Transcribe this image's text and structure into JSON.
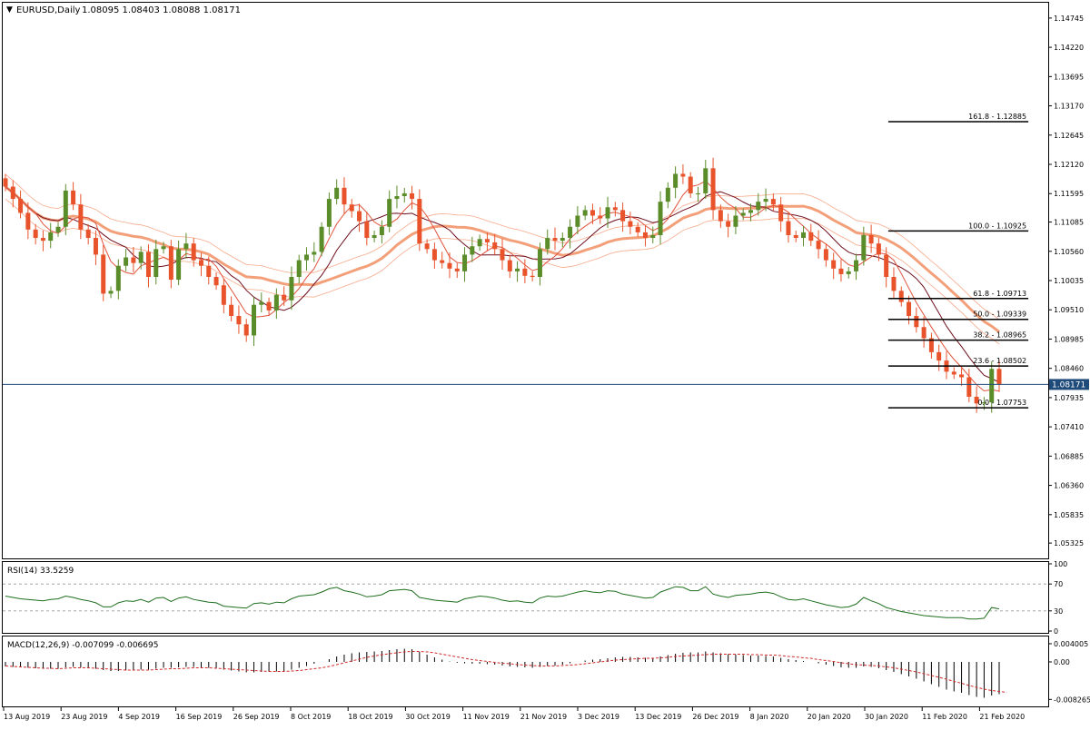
{
  "header": {
    "title": "EURUSD,Daily",
    "ohlc": "1.08095 1.08403 1.08088 1.08171"
  },
  "colors": {
    "bull": "#5b8c2a",
    "bear": "#e8532b",
    "ema_slow": "#f3a07a",
    "sma_dark": "#6e0f1e",
    "sma_red": "#e0533c",
    "band": "#f7a98a",
    "rsi": "#1e6e1e",
    "macd_hist": "#000000",
    "macd_signal": "#d12a2a",
    "fib": "#000000",
    "current_line": "#1f4b7a",
    "current_label_bg": "#1f4b7a"
  },
  "chart_data": [
    {
      "type": "candlestick",
      "title": "EURUSD,Daily",
      "ylim": [
        1.0505,
        1.1502
      ],
      "y_ticks": [
        "1.14745",
        "1.14220",
        "1.13695",
        "1.13170",
        "1.12645",
        "1.12120",
        "1.11595",
        "1.11085",
        "1.10560",
        "1.10035",
        "1.09510",
        "1.08985",
        "1.08460",
        "1.07935",
        "1.07410",
        "1.06885",
        "1.06360",
        "1.05835",
        "1.05325"
      ],
      "x_ticks": [
        "13 Aug 2019",
        "23 Aug 2019",
        "4 Sep 2019",
        "16 Sep 2019",
        "26 Sep 2019",
        "8 Oct 2019",
        "18 Oct 2019",
        "30 Oct 2019",
        "11 Nov 2019",
        "21 Nov 2019",
        "3 Dec 2019",
        "13 Dec 2019",
        "26 Dec 2019",
        "8 Jan 2020",
        "20 Jan 2020",
        "30 Jan 2020",
        "11 Feb 2020",
        "21 Feb 2020"
      ],
      "current_price": "1.08171",
      "closes": [
        1.1172,
        1.115,
        1.1125,
        1.1095,
        1.108,
        1.1075,
        1.109,
        1.11,
        1.1165,
        1.114,
        1.1095,
        1.108,
        1.105,
        1.098,
        1.0985,
        1.103,
        1.1045,
        1.1035,
        1.1055,
        1.101,
        1.106,
        1.1065,
        1.1005,
        1.106,
        1.107,
        1.104,
        1.103,
        1.101,
        1.0995,
        1.096,
        1.094,
        1.0925,
        1.0905,
        1.096,
        1.0965,
        1.095,
        1.0978,
        1.0968,
        1.101,
        1.104,
        1.105,
        1.1055,
        1.11,
        1.115,
        1.117,
        1.114,
        1.1128,
        1.111,
        1.108,
        1.1085,
        1.11,
        1.115,
        1.1155,
        1.116,
        1.115,
        1.107,
        1.106,
        1.104,
        1.1035,
        1.1025,
        1.102,
        1.105,
        1.1065,
        1.1078,
        1.1072,
        1.106,
        1.104,
        1.102,
        1.1025,
        1.1012,
        1.101,
        1.106,
        1.108,
        1.1075,
        1.108,
        1.11,
        1.112,
        1.113,
        1.112,
        1.1115,
        1.1135,
        1.113,
        1.111,
        1.11,
        1.109,
        1.108,
        1.1085,
        1.1145,
        1.117,
        1.1195,
        1.119,
        1.116,
        1.116,
        1.1205,
        1.113,
        1.111,
        1.11,
        1.112,
        1.1125,
        1.113,
        1.1145,
        1.115,
        1.114,
        1.111,
        1.1085,
        1.108,
        1.109,
        1.1075,
        1.106,
        1.104,
        1.1025,
        1.1015,
        1.102,
        1.104,
        1.1085,
        1.107,
        1.105,
        1.101,
        1.0985,
        1.0965,
        1.094,
        1.092,
        1.09,
        1.0875,
        1.086,
        1.084,
        1.0835,
        1.083,
        1.0795,
        1.0783,
        1.0785,
        1.0845,
        1.0817
      ]
    },
    {
      "type": "line",
      "title": "RSI(14) 33.5259",
      "ylim": [
        0,
        100
      ],
      "y_ticks": [
        "100",
        "70",
        "30",
        "0"
      ],
      "levels": [
        70,
        30
      ],
      "values": [
        52,
        50,
        48,
        47,
        46,
        45,
        47,
        48,
        52,
        50,
        47,
        45,
        42,
        36,
        36,
        42,
        45,
        44,
        47,
        43,
        49,
        50,
        44,
        49,
        51,
        47,
        45,
        43,
        42,
        37,
        36,
        35,
        34,
        41,
        42,
        40,
        43,
        42,
        48,
        52,
        53,
        54,
        58,
        63,
        65,
        60,
        58,
        55,
        51,
        52,
        54,
        60,
        61,
        62,
        60,
        50,
        48,
        46,
        45,
        44,
        43,
        48,
        50,
        52,
        51,
        49,
        46,
        44,
        45,
        43,
        42,
        49,
        52,
        51,
        52,
        55,
        58,
        60,
        58,
        57,
        60,
        59,
        55,
        53,
        51,
        49,
        50,
        58,
        62,
        66,
        65,
        60,
        60,
        66,
        55,
        52,
        50,
        53,
        54,
        55,
        57,
        58,
        56,
        51,
        47,
        46,
        48,
        45,
        42,
        39,
        37,
        35,
        36,
        40,
        50,
        45,
        41,
        35,
        32,
        29,
        27,
        25,
        23,
        22,
        21,
        20,
        20,
        20,
        18,
        18,
        19,
        35,
        33
      ]
    },
    {
      "type": "bar",
      "title": "MACD(12,26,9) -0.007099 -0.006695",
      "ylim": [
        -0.0094,
        0.0052
      ],
      "y_ticks": [
        "0.004005",
        "0.00",
        "-0.008265"
      ],
      "histogram": [
        -0.001,
        -0.0011,
        -0.0012,
        -0.0013,
        -0.0014,
        -0.0015,
        -0.0015,
        -0.0015,
        -0.0012,
        -0.0011,
        -0.0012,
        -0.0013,
        -0.0015,
        -0.0018,
        -0.002,
        -0.002,
        -0.0019,
        -0.0018,
        -0.0017,
        -0.0017,
        -0.0015,
        -0.0013,
        -0.0013,
        -0.0012,
        -0.0011,
        -0.0011,
        -0.0012,
        -0.0013,
        -0.0015,
        -0.0017,
        -0.0019,
        -0.0021,
        -0.0023,
        -0.0023,
        -0.0022,
        -0.0022,
        -0.0021,
        -0.002,
        -0.0017,
        -0.0013,
        -0.0009,
        -0.0004,
        0.0,
        0.0006,
        0.0012,
        0.0016,
        0.0019,
        0.0021,
        0.0022,
        0.0023,
        0.0024,
        0.0026,
        0.0028,
        0.0029,
        0.0028,
        0.0022,
        0.0016,
        0.001,
        0.0005,
        0.0001,
        -0.0002,
        -0.0003,
        -0.0004,
        -0.0004,
        -0.0005,
        -0.0006,
        -0.0008,
        -0.001,
        -0.0011,
        -0.0012,
        -0.0013,
        -0.0011,
        -0.0009,
        -0.0008,
        -0.0006,
        -0.0003,
        0.0,
        0.0003,
        0.0005,
        0.0006,
        0.0008,
        0.001,
        0.0011,
        0.0011,
        0.001,
        0.0009,
        0.0009,
        0.0012,
        0.0015,
        0.0018,
        0.002,
        0.0021,
        0.0021,
        0.0023,
        0.0021,
        0.0019,
        0.0017,
        0.0016,
        0.0015,
        0.0014,
        0.0014,
        0.0013,
        0.0012,
        0.0009,
        0.0006,
        0.0004,
        0.0002,
        0.0,
        -0.0003,
        -0.0006,
        -0.0009,
        -0.0012,
        -0.0013,
        -0.0013,
        -0.001,
        -0.0011,
        -0.0014,
        -0.0018,
        -0.0022,
        -0.0027,
        -0.0032,
        -0.0037,
        -0.0043,
        -0.0049,
        -0.0055,
        -0.0061,
        -0.0065,
        -0.0068,
        -0.0073,
        -0.0077,
        -0.0079,
        -0.0074,
        -0.0071
      ],
      "signal": [
        -0.0009,
        -0.001,
        -0.0011,
        -0.0012,
        -0.0013,
        -0.0014,
        -0.0014,
        -0.0015,
        -0.0014,
        -0.0013,
        -0.0013,
        -0.0013,
        -0.0014,
        -0.0015,
        -0.0016,
        -0.0017,
        -0.0018,
        -0.0018,
        -0.0018,
        -0.0018,
        -0.0017,
        -0.0016,
        -0.0015,
        -0.0015,
        -0.0014,
        -0.0013,
        -0.0013,
        -0.0013,
        -0.0014,
        -0.0015,
        -0.0016,
        -0.0017,
        -0.0018,
        -0.0019,
        -0.002,
        -0.0021,
        -0.0021,
        -0.0021,
        -0.002,
        -0.0019,
        -0.0017,
        -0.0015,
        -0.0013,
        -0.001,
        -0.0006,
        -0.0002,
        0.0002,
        0.0006,
        0.001,
        0.0013,
        0.0016,
        0.0018,
        0.002,
        0.0022,
        0.0023,
        0.0023,
        0.0022,
        0.002,
        0.0017,
        0.0014,
        0.0011,
        0.0008,
        0.0005,
        0.0003,
        0.0001,
        -0.0001,
        -0.0003,
        -0.0004,
        -0.0006,
        -0.0007,
        -0.0008,
        -0.0009,
        -0.0009,
        -0.0009,
        -0.0008,
        -0.0007,
        -0.0006,
        -0.0004,
        -0.0002,
        0.0,
        0.0002,
        0.0004,
        0.0005,
        0.0006,
        0.0007,
        0.0008,
        0.0008,
        0.0009,
        0.001,
        0.0012,
        0.0013,
        0.0014,
        0.0015,
        0.0016,
        0.0017,
        0.0017,
        0.0017,
        0.0017,
        0.0017,
        0.0016,
        0.0016,
        0.0015,
        0.0015,
        0.0014,
        0.0012,
        0.0011,
        0.0009,
        0.0008,
        0.0005,
        0.0003,
        0.0001,
        -0.0002,
        -0.0004,
        -0.0006,
        -0.0007,
        -0.0008,
        -0.0009,
        -0.0011,
        -0.0013,
        -0.0016,
        -0.0019,
        -0.0022,
        -0.0026,
        -0.003,
        -0.0034,
        -0.0038,
        -0.0043,
        -0.0047,
        -0.0052,
        -0.0056,
        -0.006,
        -0.0063,
        -0.0065,
        -0.0067
      ]
    }
  ],
  "fibonacci": [
    {
      "label": "161.8 - 1.12885",
      "price": 1.12885,
      "x0": 0.847,
      "x1": 0.981
    },
    {
      "label": "100.0 - 1.10925",
      "price": 1.10925,
      "x0": 0.847,
      "x1": 0.981
    },
    {
      "label": "61.8 - 1.09713",
      "price": 1.09713,
      "x0": 0.847,
      "x1": 0.981
    },
    {
      "label": "50.0 - 1.09339",
      "price": 1.09339,
      "x0": 0.847,
      "x1": 0.981
    },
    {
      "label": "38.2 - 1.08965",
      "price": 1.08965,
      "x0": 0.847,
      "x1": 0.981
    },
    {
      "label": "23.6 - 1.08502",
      "price": 1.08502,
      "x0": 0.847,
      "x1": 0.981
    },
    {
      "label": "0.0 - 1.07753",
      "price": 1.07753,
      "x0": 0.847,
      "x1": 0.981
    }
  ]
}
